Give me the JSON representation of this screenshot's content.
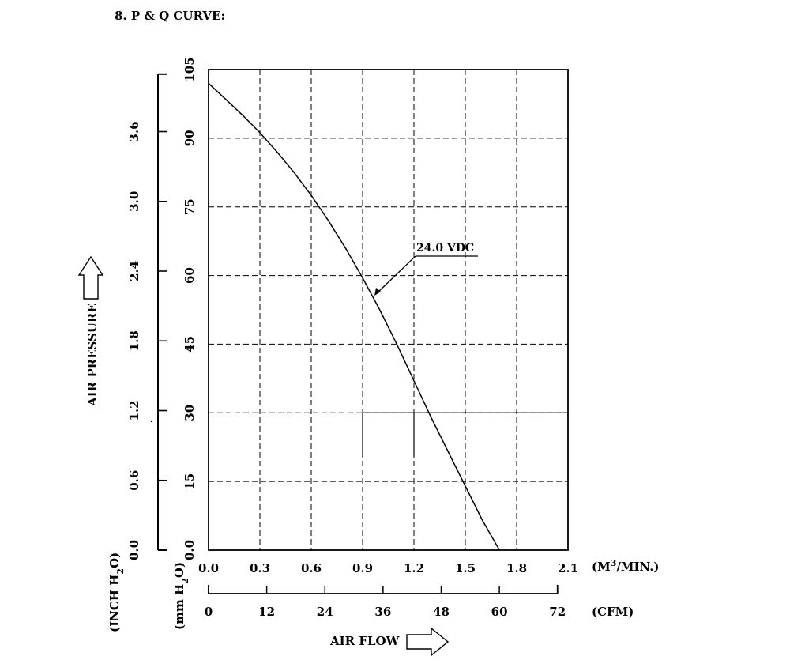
{
  "heading": "8. P & Q CURVE:",
  "chart_data": {
    "type": "line",
    "title": "",
    "xlabel": "AIR FLOW",
    "ylabel": "AIR PRESSURE",
    "x_unit": "(M3/MIN.)",
    "x_unit_parts": {
      "base": "(M",
      "sup": "3",
      "rest": "/MIN.)"
    },
    "x2_unit": "(CFM)",
    "y_unit": "(mm H2O)",
    "y_unit_parts": {
      "base": "(mm H",
      "sub": "2",
      "rest": "O)"
    },
    "y2_unit": "(INCH H2O)",
    "y2_unit_parts": {
      "base": "(INCH H",
      "sub": "2",
      "rest": "O)"
    },
    "xlim": [
      0,
      2.1
    ],
    "ylim": [
      0,
      105
    ],
    "x_ticks": [
      "0.0",
      "0.3",
      "0.6",
      "0.9",
      "1.2",
      "1.5",
      "1.8",
      "2.1"
    ],
    "y_ticks": [
      "0.0",
      "15",
      "30",
      "45",
      "60",
      "75",
      "90",
      "105"
    ],
    "x2_ticks": [
      "0",
      "12",
      "24",
      "36",
      "48",
      "60",
      "72"
    ],
    "y2_ticks": [
      "0.0",
      "0.6",
      "1.2",
      "1.8",
      "2.4",
      "3.0",
      "3.6"
    ],
    "grid": true,
    "series": [
      {
        "name": "24.0 VDC",
        "x": [
          0,
          0.1,
          0.2,
          0.3,
          0.4,
          0.5,
          0.6,
          0.7,
          0.8,
          0.9,
          1.0,
          1.1,
          1.2,
          1.3,
          1.4,
          1.5,
          1.6,
          1.7
        ],
        "y": [
          102,
          98.5,
          95,
          91.2,
          87,
          82.5,
          77.5,
          72,
          66,
          59.5,
          52.5,
          45,
          37,
          29,
          21.5,
          14,
          6.5,
          0
        ]
      }
    ]
  }
}
